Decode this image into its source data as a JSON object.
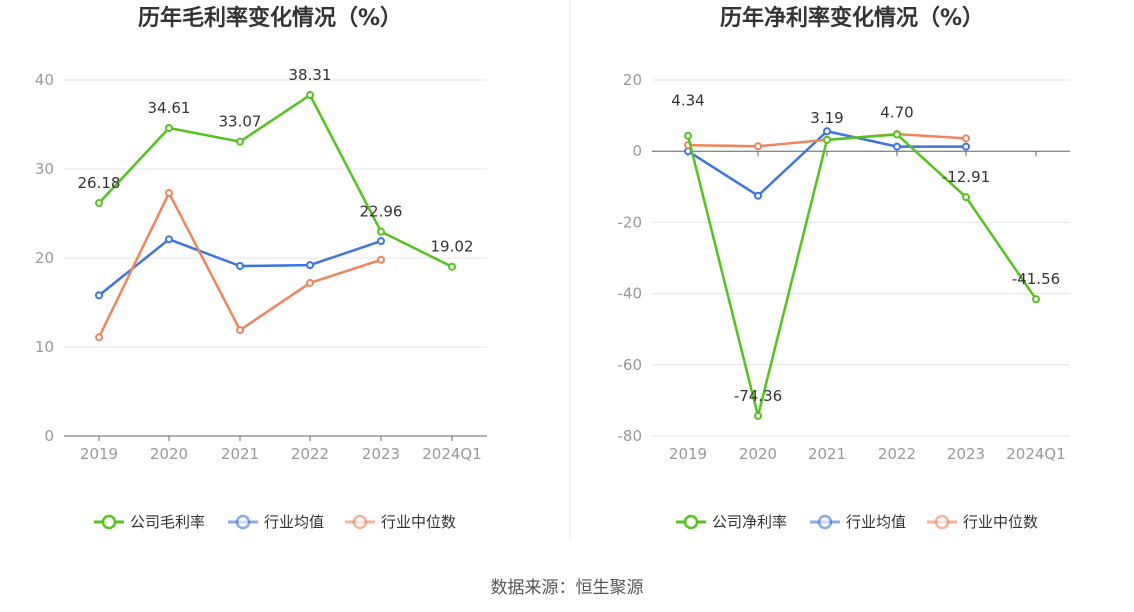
{
  "source_text": "数据来源：恒生聚源",
  "chart_data": [
    {
      "type": "line",
      "title": "历年毛利率变化情况（%）",
      "categories": [
        "2019",
        "2020",
        "2021",
        "2022",
        "2023",
        "2024Q1"
      ],
      "ylim": [
        0,
        40
      ],
      "yticks": [
        0,
        10,
        20,
        30,
        40
      ],
      "grid": true,
      "legend_position": "bottom",
      "series": [
        {
          "name": "公司毛利率",
          "color": "#52c41a",
          "values": [
            26.18,
            34.61,
            33.07,
            38.31,
            22.96,
            19.02
          ],
          "labels": [
            "26.18",
            "34.61",
            "33.07",
            "38.31",
            "22.96",
            "19.02"
          ]
        },
        {
          "name": "行业均值",
          "color": "#3a75e0",
          "values": [
            15.8,
            22.1,
            19.1,
            19.2,
            21.9,
            null
          ]
        },
        {
          "name": "行业中位数",
          "color": "#f0845a",
          "values": [
            11.1,
            27.3,
            11.9,
            17.2,
            19.8,
            null
          ]
        }
      ]
    },
    {
      "type": "line",
      "title": "历年净利率变化情况（%）",
      "categories": [
        "2019",
        "2020",
        "2021",
        "2022",
        "2023",
        "2024Q1"
      ],
      "ylim": [
        -80,
        20
      ],
      "yticks": [
        -80,
        -60,
        -40,
        -20,
        0,
        20
      ],
      "grid": true,
      "legend_position": "bottom",
      "series": [
        {
          "name": "公司净利率",
          "color": "#52c41a",
          "values": [
            4.34,
            -74.36,
            3.19,
            4.7,
            -12.91,
            -41.56
          ],
          "labels": [
            "4.34",
            "-74.36",
            "3.19",
            "4.70",
            "-12.91",
            "-41.56"
          ]
        },
        {
          "name": "行业均值",
          "color": "#3a75e0",
          "values": [
            0.0,
            -12.5,
            5.6,
            1.3,
            1.3,
            null
          ]
        },
        {
          "name": "行业中位数",
          "color": "#f0845a",
          "values": [
            1.7,
            1.4,
            3.2,
            4.8,
            3.6,
            null
          ]
        }
      ]
    }
  ]
}
